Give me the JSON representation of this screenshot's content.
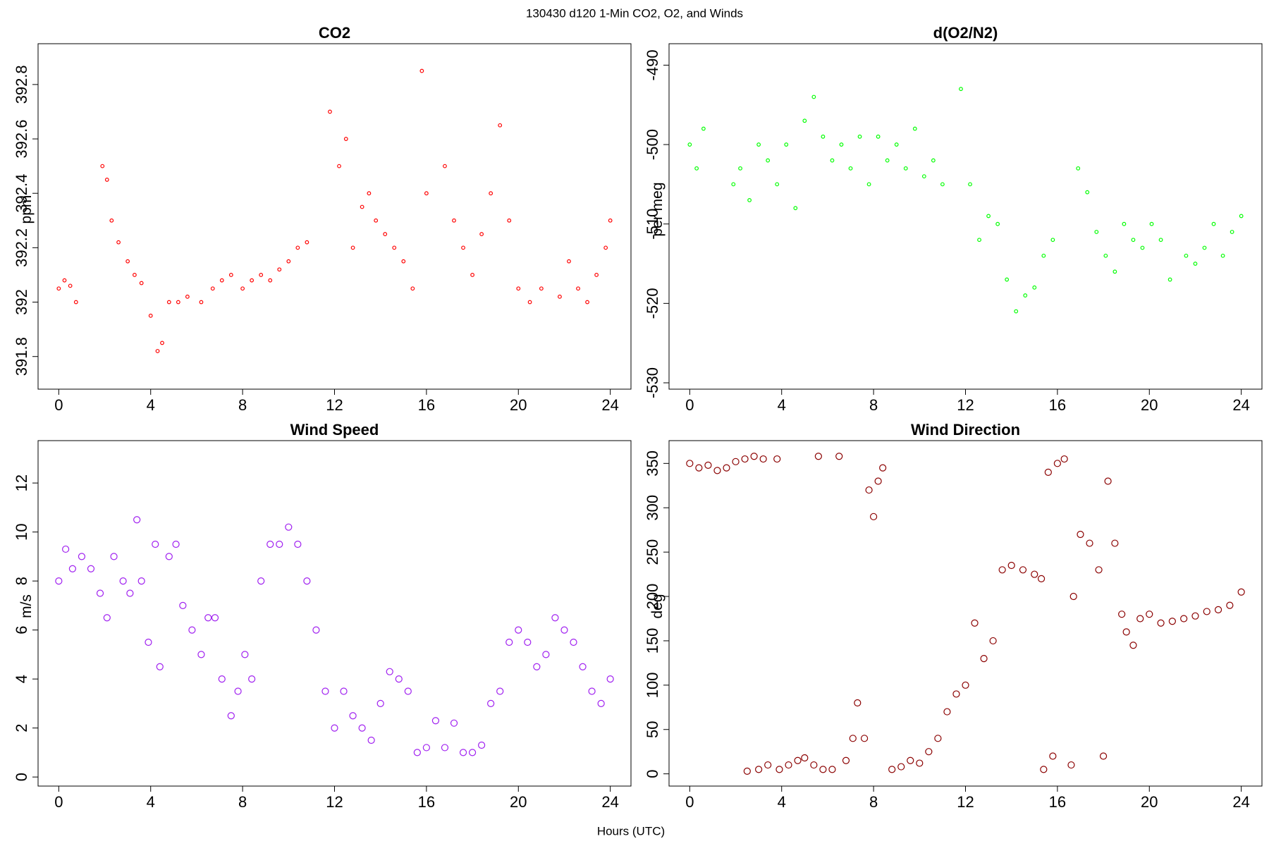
{
  "figure": {
    "title": "130430   d120   1-Min CO2, O2, and Winds",
    "xlabel": "Hours (UTC)"
  },
  "chart_data": [
    {
      "type": "scatter",
      "title": "CO2",
      "ylabel": "ppm",
      "color": "#ff0000",
      "marker_size": 2.3,
      "xlim": [
        -0.9,
        24.9
      ],
      "xticks": [
        0,
        4,
        8,
        12,
        16,
        20,
        24
      ],
      "ylim": [
        391.68,
        392.95
      ],
      "yticks": [
        391.8,
        392,
        392.2,
        392.4,
        392.6,
        392.8
      ],
      "x": [
        0,
        0.25,
        0.5,
        0.75,
        1.9,
        2.1,
        2.3,
        2.6,
        3.0,
        3.3,
        3.6,
        4.0,
        4.3,
        4.5,
        4.8,
        5.2,
        5.6,
        6.2,
        6.7,
        7.1,
        7.5,
        8.0,
        8.4,
        8.8,
        9.2,
        9.6,
        10.0,
        10.4,
        10.8,
        11.8,
        12.2,
        12.5,
        12.8,
        13.2,
        13.5,
        13.8,
        14.2,
        14.6,
        15.0,
        15.4,
        15.8,
        16.0,
        16.8,
        17.2,
        17.6,
        18.0,
        18.4,
        18.8,
        19.2,
        19.6,
        20.0,
        20.5,
        21.0,
        21.8,
        22.2,
        22.6,
        23.0,
        23.4,
        23.8,
        24.0
      ],
      "values": [
        392.05,
        392.08,
        392.06,
        392.0,
        392.5,
        392.45,
        392.3,
        392.22,
        392.15,
        392.1,
        392.07,
        391.95,
        391.82,
        391.85,
        392.0,
        392.0,
        392.02,
        392.0,
        392.05,
        392.08,
        392.1,
        392.05,
        392.08,
        392.1,
        392.08,
        392.12,
        392.15,
        392.2,
        392.22,
        392.7,
        392.5,
        392.6,
        392.2,
        392.35,
        392.4,
        392.3,
        392.25,
        392.2,
        392.15,
        392.05,
        392.85,
        392.4,
        392.5,
        392.3,
        392.2,
        392.1,
        392.25,
        392.4,
        392.65,
        392.3,
        392.05,
        392.0,
        392.05,
        392.02,
        392.15,
        392.05,
        392.0,
        392.1,
        392.2,
        392.3
      ]
    },
    {
      "type": "scatter",
      "title": "d(O2/N2)",
      "ylabel": "per meg",
      "color": "#00ff00",
      "marker_size": 2.3,
      "xlim": [
        -0.9,
        24.9
      ],
      "xticks": [
        0,
        4,
        8,
        12,
        16,
        20,
        24
      ],
      "ylim": [
        -530.8,
        -487.3
      ],
      "yticks": [
        -530,
        -520,
        -510,
        -500,
        -490
      ],
      "x": [
        0,
        0.3,
        0.6,
        1.9,
        2.2,
        2.6,
        3.0,
        3.4,
        3.8,
        4.2,
        4.6,
        5.0,
        5.4,
        5.8,
        6.2,
        6.6,
        7.0,
        7.4,
        7.8,
        8.2,
        8.6,
        9.0,
        9.4,
        9.8,
        10.2,
        10.6,
        11.0,
        11.8,
        12.2,
        12.6,
        13.0,
        13.4,
        13.8,
        14.2,
        14.6,
        15.0,
        15.4,
        15.8,
        16.9,
        17.3,
        17.7,
        18.1,
        18.5,
        18.9,
        19.3,
        19.7,
        20.1,
        20.5,
        20.9,
        21.6,
        22.0,
        22.4,
        22.8,
        23.2,
        23.6,
        24.0
      ],
      "values": [
        -500,
        -503,
        -498,
        -505,
        -503,
        -507,
        -500,
        -502,
        -505,
        -500,
        -508,
        -497,
        -494,
        -499,
        -502,
        -500,
        -503,
        -499,
        -505,
        -499,
        -502,
        -500,
        -503,
        -498,
        -504,
        -502,
        -505,
        -493,
        -505,
        -512,
        -509,
        -510,
        -517,
        -521,
        -519,
        -518,
        -514,
        -512,
        -503,
        -506,
        -511,
        -514,
        -516,
        -510,
        -512,
        -513,
        -510,
        -512,
        -517,
        -514,
        -515,
        -513,
        -510,
        -514,
        -511,
        -509
      ]
    },
    {
      "type": "scatter",
      "title": "Wind Speed",
      "ylabel": "m/s",
      "color": "#a020f0",
      "marker_size": 4.5,
      "xlim": [
        -0.9,
        24.9
      ],
      "xticks": [
        0,
        4,
        8,
        12,
        16,
        20,
        24
      ],
      "ylim": [
        -0.37,
        13.73
      ],
      "yticks": [
        0,
        2,
        4,
        6,
        8,
        10,
        12
      ],
      "x": [
        0,
        0.3,
        0.6,
        1.0,
        1.4,
        1.8,
        2.1,
        2.4,
        2.8,
        3.1,
        3.4,
        3.6,
        3.9,
        4.2,
        4.4,
        4.8,
        5.1,
        5.4,
        5.8,
        6.2,
        6.5,
        6.8,
        7.1,
        7.5,
        7.8,
        8.1,
        8.4,
        8.8,
        9.2,
        9.6,
        10.0,
        10.4,
        10.8,
        11.2,
        11.6,
        12.0,
        12.4,
        12.8,
        13.2,
        13.6,
        14.0,
        14.4,
        14.8,
        15.2,
        15.6,
        16.0,
        16.4,
        16.8,
        17.2,
        17.6,
        18.0,
        18.4,
        18.8,
        19.2,
        19.6,
        20.0,
        20.4,
        20.8,
        21.2,
        21.6,
        22.0,
        22.4,
        22.8,
        23.2,
        23.6,
        24.0
      ],
      "values": [
        8,
        9.3,
        8.5,
        9,
        8.5,
        7.5,
        6.5,
        9,
        8,
        7.5,
        10.5,
        8,
        5.5,
        9.5,
        4.5,
        9,
        9.5,
        7,
        6,
        5,
        6.5,
        6.5,
        4,
        2.5,
        3.5,
        5,
        4,
        8,
        9.5,
        9.5,
        10.2,
        9.5,
        8,
        6,
        3.5,
        2,
        3.5,
        2.5,
        2,
        1.5,
        3,
        4.3,
        4,
        3.5,
        1,
        1.2,
        2.3,
        1.2,
        2.2,
        1,
        1,
        1.3,
        3,
        3.5,
        5.5,
        6,
        5.5,
        4.5,
        5,
        6.5,
        6,
        5.5,
        4.5,
        3.5,
        3,
        4
      ]
    },
    {
      "type": "scatter",
      "title": "Wind Direction",
      "ylabel": "deg",
      "color": "#8b0000",
      "marker_size": 4.5,
      "xlim": [
        -0.9,
        24.9
      ],
      "xticks": [
        0,
        4,
        8,
        12,
        16,
        20,
        24
      ],
      "ylim": [
        -13.8,
        375.7
      ],
      "yticks": [
        0,
        50,
        100,
        150,
        200,
        250,
        300,
        350
      ],
      "x": [
        0,
        0.4,
        0.8,
        1.2,
        1.6,
        2.0,
        2.4,
        2.5,
        2.8,
        3.0,
        3.2,
        3.4,
        3.8,
        3.9,
        4.3,
        4.7,
        5.0,
        5.4,
        5.6,
        5.8,
        6.2,
        6.5,
        6.8,
        7.1,
        7.3,
        7.6,
        7.8,
        8.0,
        8.2,
        8.4,
        8.8,
        9.2,
        9.6,
        10.0,
        10.4,
        10.8,
        11.2,
        11.6,
        12.0,
        12.4,
        12.8,
        13.2,
        13.6,
        14.0,
        14.5,
        15.0,
        15.3,
        15.4,
        15.6,
        15.8,
        16.0,
        16.3,
        16.6,
        16.7,
        17.0,
        17.4,
        17.8,
        18.0,
        18.2,
        18.5,
        18.8,
        19.0,
        19.3,
        19.6,
        20.0,
        20.5,
        21.0,
        21.5,
        22.0,
        22.5,
        23.0,
        23.5,
        24.0
      ],
      "values": [
        350,
        345,
        348,
        342,
        345,
        352,
        355,
        3,
        358,
        5,
        355,
        10,
        355,
        5,
        10,
        15,
        18,
        10,
        358,
        5,
        5,
        358,
        15,
        40,
        80,
        40,
        320,
        290,
        330,
        345,
        5,
        8,
        15,
        12,
        25,
        40,
        70,
        90,
        100,
        170,
        130,
        150,
        230,
        235,
        230,
        225,
        220,
        5,
        340,
        20,
        350,
        355,
        10,
        200,
        270,
        260,
        230,
        20,
        330,
        260,
        180,
        160,
        145,
        175,
        180,
        170,
        172,
        175,
        178,
        183,
        185,
        190,
        205
      ]
    }
  ]
}
